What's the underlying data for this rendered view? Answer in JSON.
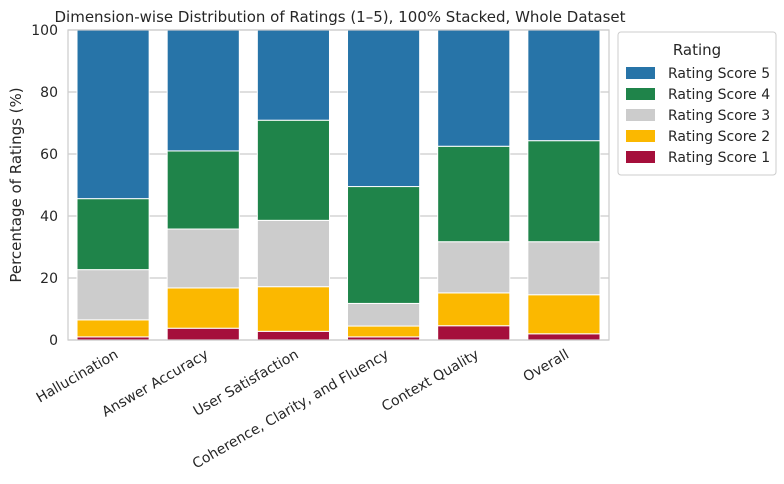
{
  "chart_data": {
    "type": "bar",
    "stacked": true,
    "title": "Dimension-wise Distribution of Ratings (1–5), 100% Stacked, Whole Dataset",
    "xlabel": "",
    "ylabel": "Percentage of Ratings (%)",
    "ylim": [
      0,
      100
    ],
    "yticks": [
      "0",
      "20",
      "40",
      "60",
      "80",
      "100"
    ],
    "grid": true,
    "legend_title": "Rating",
    "legend_position": "outside-top-right",
    "categories": [
      "Hallucination",
      "Answer Accuracy",
      "User Satisfaction",
      "Coherence, Clarity, and Fluency",
      "Context Quality",
      "Overall"
    ],
    "series": [
      {
        "name": "Rating Score 1",
        "color": "#a50f3b",
        "values": [
          1.0,
          3.8,
          2.8,
          1.0,
          4.6,
          2.0
        ]
      },
      {
        "name": "Rating Score 2",
        "color": "#fbb800",
        "values": [
          5.5,
          13.0,
          14.4,
          3.5,
          10.6,
          12.6
        ]
      },
      {
        "name": "Rating Score 3",
        "color": "#cccccc",
        "values": [
          16.2,
          19.0,
          21.4,
          7.3,
          16.5,
          17.1
        ]
      },
      {
        "name": "Rating Score 4",
        "color": "#1f844a",
        "values": [
          22.9,
          25.2,
          32.3,
          37.7,
          30.8,
          32.6
        ]
      },
      {
        "name": "Rating Score 5",
        "color": "#2774a8",
        "values": [
          54.4,
          39.0,
          29.1,
          50.5,
          37.5,
          35.7
        ]
      }
    ]
  }
}
